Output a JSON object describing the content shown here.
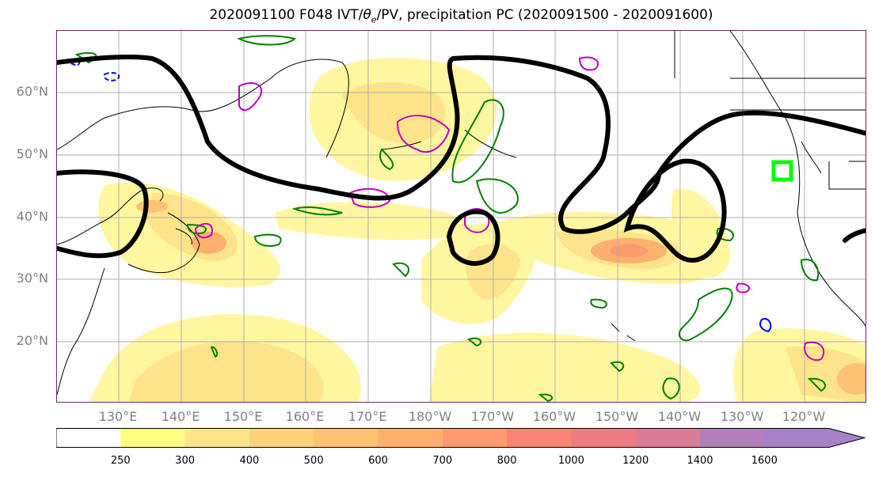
{
  "title": "2020091100 F048 IVT/θe/PV, precipitation PC (2020091500 - 2020091600)",
  "title_parts": {
    "prefix": "2020091100 F048 IVT/",
    "theta": "θ",
    "sub": "e",
    "suffix": "/PV, precipitation PC (2020091500 - 2020091600)"
  },
  "lat_labels": [
    "60°N",
    "50°N",
    "40°N",
    "30°N",
    "20°N"
  ],
  "lon_labels": [
    "130°E",
    "140°E",
    "150°E",
    "160°E",
    "170°E",
    "180°W",
    "170°W",
    "160°W",
    "150°W",
    "140°W",
    "130°W",
    "120°W"
  ],
  "colorbar": {
    "ticks": [
      "250",
      "300",
      "400",
      "500",
      "600",
      "700",
      "800",
      "1000",
      "1200",
      "1400",
      "1600"
    ],
    "colors": [
      "#ffffff",
      "#ffff80",
      "#fde48a",
      "#fdd27a",
      "#fdc272",
      "#fdb06e",
      "#fc9a70",
      "#f98475",
      "#ec7c82",
      "#d87c98",
      "#b27fba",
      "#a880c8"
    ],
    "extend": "max"
  },
  "map": {
    "region": "North Pacific",
    "lat_range": [
      10,
      70
    ],
    "lon_range": [
      120,
      250
    ],
    "grid": true,
    "field_colors": {
      "ivt_light": "#fff6a0",
      "ivt_mid": "#fde48a",
      "ivt_high": "#fdb06e",
      "ivt_peak": "#f98475",
      "pv_contour": "#000000",
      "precip_contour": "#008000",
      "theta_contour_pos": "#c000c0",
      "theta_contour_neg": "#0000ff",
      "target_box": "#00ff00"
    }
  }
}
